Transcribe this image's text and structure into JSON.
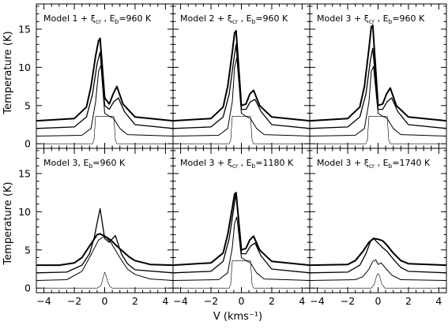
{
  "chart_data": {
    "type": "line",
    "xlabel": "V (kms⁻¹)",
    "ylabel": "Temperature (K)",
    "xlim": [
      -4.5,
      4.5
    ],
    "ylim": [
      -0.6,
      18.3
    ],
    "xticks": [
      "−4",
      "−2",
      "0",
      "2",
      "4"
    ],
    "yticks": [
      "0",
      "5",
      "10",
      "15"
    ],
    "grid": false,
    "line_color": "#000000",
    "panels": [
      {
        "label": {
          "pre": "Model 1 + ξ",
          "sub": "cr",
          "mid": " , E",
          "sub2": "b",
          "post": "=960 K"
        },
        "series": [
          {
            "x": [
              -4.5,
              -2,
              -1.2,
              -0.9,
              -0.6,
              -0.4,
              -0.3,
              0,
              0.3,
              0.55,
              0.8,
              1.2,
              2,
              4.5
            ],
            "y": [
              3,
              3.3,
              4.8,
              7.5,
              11.5,
              13.5,
              13.8,
              6,
              5.2,
              6.5,
              7.5,
              5.2,
              3.5,
              3
            ]
          },
          {
            "x": [
              -4.5,
              -2,
              -1.2,
              -0.8,
              -0.5,
              -0.3,
              0,
              0.3,
              0.6,
              0.9,
              1.3,
              2,
              4.5
            ],
            "y": [
              2,
              2.2,
              3.5,
              6.5,
              10.5,
              12,
              5,
              4.5,
              5.5,
              6,
              4.2,
              2.5,
              2
            ]
          },
          {
            "x": [
              -4.5,
              -1.5,
              -0.9,
              -0.6,
              -0.4,
              -0.25,
              0,
              0.3,
              0.6,
              1,
              1.5,
              4.5
            ],
            "y": [
              1,
              1.1,
              2,
              5.5,
              9.5,
              10.3,
              4,
              3.6,
              3.3,
              2,
              1.2,
              1
            ]
          },
          {
            "x": [
              -4.5,
              -0.8,
              -0.7,
              -0.6,
              0.6,
              0.7,
              0.8,
              4.5
            ],
            "y": [
              0,
              0,
              0.5,
              3.6,
              3.6,
              0.5,
              0,
              0
            ]
          }
        ]
      },
      {
        "label": {
          "pre": "Model 2 + ξ",
          "sub": "cr",
          "mid": " , E",
          "sub2": "b",
          "post": "=960 K"
        },
        "series": [
          {
            "x": [
              -4.5,
              -2,
              -1.2,
              -0.9,
              -0.6,
              -0.45,
              -0.35,
              0,
              0.3,
              0.55,
              0.8,
              1.2,
              2,
              4.5
            ],
            "y": [
              3,
              3.3,
              4.8,
              7.5,
              12,
              14.5,
              14.8,
              5,
              5.2,
              6.5,
              7,
              5,
              3.5,
              3
            ]
          },
          {
            "x": [
              -4.5,
              -2,
              -1.2,
              -0.8,
              -0.5,
              -0.35,
              0,
              0.3,
              0.6,
              0.9,
              1.3,
              2,
              4.5
            ],
            "y": [
              2,
              2.2,
              3.5,
              6.5,
              11,
              13,
              4.5,
              4.5,
              5.5,
              5.8,
              4.2,
              2.5,
              2
            ]
          },
          {
            "x": [
              -4.5,
              -1.5,
              -0.9,
              -0.6,
              -0.45,
              -0.3,
              0,
              0.3,
              0.6,
              1,
              1.5,
              4.5
            ],
            "y": [
              1,
              1.1,
              2,
              5.5,
              10,
              11.3,
              4,
              3.6,
              3.3,
              2,
              1.2,
              1
            ]
          },
          {
            "x": [
              -4.5,
              -0.8,
              -0.7,
              -0.6,
              0.6,
              0.7,
              0.8,
              4.5
            ],
            "y": [
              0,
              0,
              0.5,
              3.6,
              3.6,
              0.5,
              0,
              0
            ]
          }
        ]
      },
      {
        "label": {
          "pre": "Model 3 + ξ",
          "sub": "cr",
          "mid": " , E",
          "sub2": "b",
          "post": "=960 K"
        },
        "series": [
          {
            "x": [
              -4.5,
              -2,
              -1.2,
              -0.9,
              -0.6,
              -0.45,
              -0.35,
              0,
              0.3,
              0.55,
              0.8,
              1.2,
              2,
              4.5
            ],
            "y": [
              3,
              3.3,
              4.8,
              7.5,
              12.5,
              15.3,
              15.5,
              5,
              5.2,
              6.5,
              7.3,
              5,
              3.5,
              3
            ]
          },
          {
            "x": [
              -4.5,
              -2,
              -1.2,
              -0.8,
              -0.5,
              -0.35,
              0,
              0.3,
              0.6,
              0.9,
              1.3,
              2,
              4.5
            ],
            "y": [
              2,
              2.2,
              3.5,
              6.5,
              11,
              12.5,
              4.5,
              4.5,
              5.5,
              6,
              4.2,
              2.5,
              2
            ]
          },
          {
            "x": [
              -4.5,
              -1.5,
              -0.9,
              -0.6,
              -0.45,
              -0.3,
              0,
              0.3,
              0.6,
              1,
              1.5,
              4.5
            ],
            "y": [
              1,
              1.1,
              2,
              5.5,
              9.5,
              10.1,
              4,
              3.6,
              3.3,
              2,
              1.2,
              1
            ]
          },
          {
            "x": [
              -4.5,
              -0.8,
              -0.7,
              -0.6,
              0.6,
              0.7,
              0.8,
              4.5
            ],
            "y": [
              0,
              0,
              0.5,
              3.6,
              3.6,
              0.5,
              0,
              0
            ]
          }
        ]
      },
      {
        "label": {
          "pre": "Model 3, E",
          "sub": "b",
          "post": "=960 K"
        },
        "series": [
          {
            "x": [
              -4.5,
              -3,
              -2,
              -1.5,
              -1,
              -0.5,
              -0.3,
              0,
              0.4,
              0.8,
              1.2,
              1.6,
              2,
              3,
              4.5
            ],
            "y": [
              3,
              3,
              3.3,
              4,
              5.5,
              7,
              7.1,
              6.8,
              6.3,
              5.5,
              4.8,
              4.1,
              3.6,
              3.1,
              3
            ]
          },
          {
            "x": [
              -4.5,
              -2.5,
              -1.5,
              -1,
              -0.7,
              -0.4,
              -0.3,
              0,
              0.3,
              0.7,
              1.1,
              1.5,
              2,
              4.5
            ],
            "y": [
              2,
              2.1,
              3,
              4.5,
              6.5,
              9.5,
              10.4,
              6.5,
              6,
              6.9,
              4.5,
              3.2,
              2.4,
              2
            ]
          },
          {
            "x": [
              -4.5,
              -2.5,
              -1.5,
              -1,
              -0.4,
              0,
              0.4,
              1,
              1.5,
              2,
              3,
              4.5
            ],
            "y": [
              1,
              1.1,
              2.2,
              4,
              6.3,
              6.8,
              6,
              4,
              2.5,
              1.8,
              1.2,
              1
            ]
          },
          {
            "x": [
              -4.5,
              -0.5,
              -0.25,
              -0.1,
              0,
              0.1,
              0.2,
              0.35,
              0.5,
              4.5
            ],
            "y": [
              0,
              0,
              0.3,
              1.4,
              2.1,
              1.6,
              0.8,
              0.2,
              0,
              0
            ]
          }
        ]
      },
      {
        "label": {
          "pre": "Model 3 + ξ",
          "sub": "cr",
          "mid": " , E",
          "sub2": "b",
          "post": "=1180 K"
        },
        "series": [
          {
            "x": [
              -4.5,
              -2,
              -1.2,
              -0.9,
              -0.6,
              -0.45,
              -0.35,
              0,
              0.3,
              0.55,
              0.8,
              1.2,
              2,
              4.5
            ],
            "y": [
              3,
              3.3,
              4.6,
              7,
              10.5,
              12.3,
              12.5,
              5,
              5.2,
              6.3,
              6.8,
              5,
              3.5,
              3
            ]
          },
          {
            "x": [
              -4.5,
              -2,
              -1.2,
              -0.8,
              -0.5,
              -0.35,
              0,
              0.3,
              0.6,
              0.9,
              1.3,
              2,
              4.5
            ],
            "y": [
              2,
              2.2,
              3.5,
              6.5,
              10.5,
              12.4,
              4.5,
              4.5,
              5.5,
              5.9,
              4.2,
              2.5,
              2
            ]
          },
          {
            "x": [
              -4.5,
              -1.5,
              -0.9,
              -0.6,
              -0.45,
              -0.3,
              0,
              0.3,
              0.6,
              1,
              1.5,
              4.5
            ],
            "y": [
              1,
              1.1,
              2,
              5.3,
              8.5,
              9.3,
              4,
              3.6,
              3.3,
              2,
              1.2,
              1
            ]
          },
          {
            "x": [
              -4.5,
              -0.8,
              -0.7,
              -0.6,
              0.6,
              0.7,
              0.8,
              4.5
            ],
            "y": [
              0,
              0,
              0.5,
              3.6,
              3.6,
              0.5,
              0,
              0
            ]
          }
        ]
      },
      {
        "label": {
          "pre": "Model 3 + ξ",
          "sub": "cr",
          "mid": " , E",
          "sub2": "b",
          "post": "=1740 K"
        },
        "series": [
          {
            "x": [
              -4.5,
              -2,
              -1.5,
              -1,
              -0.6,
              -0.3,
              0,
              0.3,
              0.6,
              1,
              1.5,
              2,
              4.5
            ],
            "y": [
              3,
              3.1,
              3.6,
              4.8,
              6,
              6.5,
              6.4,
              6.2,
              5.6,
              4.6,
              3.6,
              3.2,
              3
            ]
          },
          {
            "x": [
              -4.5,
              -2,
              -1.2,
              -0.8,
              -0.5,
              -0.3,
              0,
              0.3,
              0.6,
              1,
              1.5,
              2,
              4.5
            ],
            "y": [
              2,
              2.1,
              3,
              4.5,
              6.1,
              6.5,
              5.9,
              5.3,
              4.8,
              3.8,
              2.7,
              2.2,
              2
            ]
          },
          {
            "x": [
              -4.5,
              -1.5,
              -1,
              -0.6,
              -0.35,
              -0.15,
              0,
              0.2,
              0.5,
              0.9,
              1.5,
              4.5
            ],
            "y": [
              1,
              1.1,
              1.5,
              2.5,
              3.5,
              3.7,
              3.1,
              3.3,
              2.6,
              1.7,
              1.1,
              1
            ]
          },
          {
            "x": [
              -4.5,
              -0.45,
              -0.25,
              -0.1,
              0,
              0.1,
              0.25,
              0.45,
              4.5
            ],
            "y": [
              0,
              0,
              0.5,
              1.6,
              1.9,
              1.6,
              0.5,
              0,
              0
            ]
          }
        ]
      }
    ]
  }
}
